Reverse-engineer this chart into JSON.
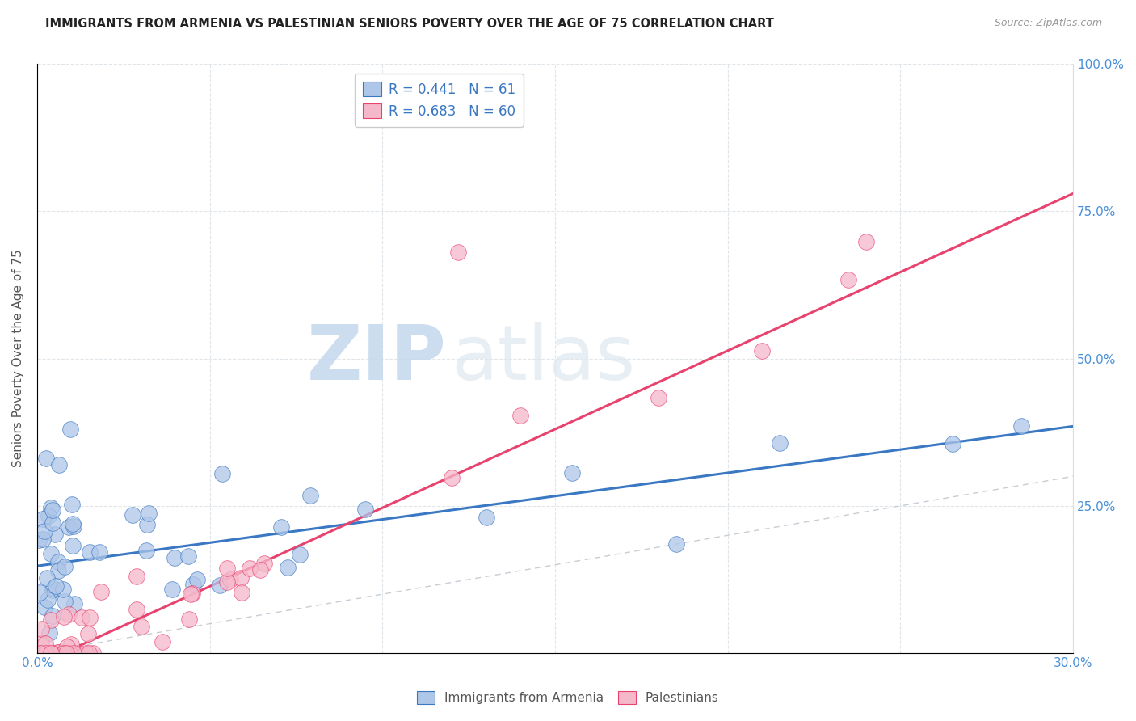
{
  "title": "IMMIGRANTS FROM ARMENIA VS PALESTINIAN SENIORS POVERTY OVER THE AGE OF 75 CORRELATION CHART",
  "source": "Source: ZipAtlas.com",
  "ylabel": "Seniors Poverty Over the Age of 75",
  "xlim": [
    0.0,
    0.3
  ],
  "ylim": [
    0.0,
    1.0
  ],
  "armenia_R": 0.441,
  "armenia_N": 61,
  "palestine_R": 0.683,
  "palestine_N": 60,
  "armenia_color": "#aec6e8",
  "armenia_line_color": "#3b78c3",
  "palestine_color": "#f5b8cb",
  "palestine_line_color": "#e8436e",
  "diagonal_color": "#c8cdd4",
  "watermark_zip": "ZIP",
  "watermark_atlas": "atlas",
  "arm_line_x0": 0.0,
  "arm_line_y0": 0.148,
  "arm_line_x1": 0.3,
  "arm_line_y1": 0.385,
  "pal_line_x0": 0.0,
  "pal_line_y0": -0.02,
  "pal_line_x1": 0.3,
  "pal_line_y1": 0.78,
  "right_ytick_labels": [
    "",
    "25.0%",
    "50.0%",
    "75.0%",
    "100.0%"
  ],
  "yticks": [
    0.0,
    0.25,
    0.5,
    0.75,
    1.0
  ]
}
